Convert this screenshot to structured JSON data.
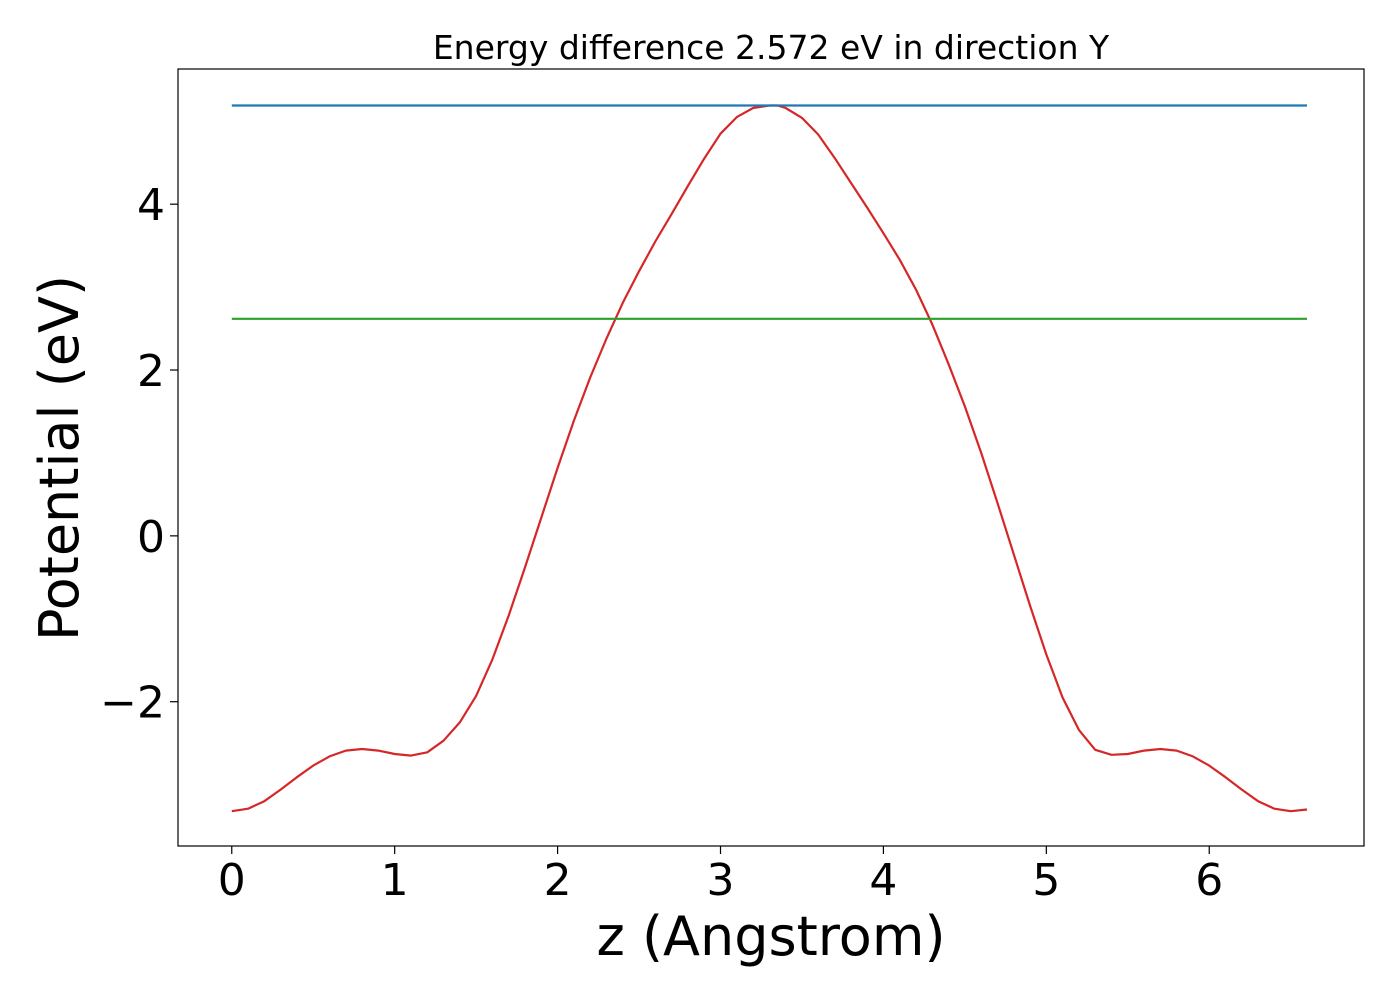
{
  "chart_data": {
    "type": "line",
    "title": "Energy difference 2.572 eV in direction Y",
    "xlabel": "z (Angstrom)",
    "ylabel": "Potential (eV)",
    "xlim": [
      -0.33,
      6.95
    ],
    "ylim": [
      -3.74,
      5.63
    ],
    "xticks": [
      0,
      1,
      2,
      3,
      4,
      5,
      6
    ],
    "xtick_labels": [
      "0",
      "1",
      "2",
      "3",
      "4",
      "5",
      "6"
    ],
    "yticks": [
      -2,
      0,
      2,
      4
    ],
    "ytick_labels": [
      "−2",
      "0",
      "2",
      "4"
    ],
    "grid": false,
    "series": [
      {
        "color": "#d62728",
        "x": [
          0,
          0.1,
          0.2,
          0.3,
          0.4,
          0.5,
          0.6,
          0.7,
          0.8,
          0.9,
          1.0,
          1.1,
          1.2,
          1.3,
          1.4,
          1.5,
          1.6,
          1.7,
          1.8,
          1.9,
          2.0,
          2.1,
          2.2,
          2.3,
          2.4,
          2.5,
          2.6,
          2.7,
          2.8,
          2.9,
          3.0,
          3.1,
          3.2,
          3.3,
          3.35,
          3.4,
          3.5,
          3.6,
          3.7,
          3.8,
          3.9,
          4.0,
          4.1,
          4.2,
          4.3,
          4.4,
          4.5,
          4.6,
          4.7,
          4.8,
          4.9,
          5.0,
          5.1,
          5.2,
          5.3,
          5.4,
          5.5,
          5.6,
          5.7,
          5.8,
          5.9,
          6.0,
          6.1,
          6.2,
          6.3,
          6.4,
          6.5,
          6.6
        ],
        "y": [
          -3.32,
          -3.29,
          -3.2,
          -3.06,
          -2.91,
          -2.77,
          -2.66,
          -2.59,
          -2.57,
          -2.59,
          -2.63,
          -2.65,
          -2.61,
          -2.47,
          -2.25,
          -1.93,
          -1.49,
          -0.96,
          -0.38,
          0.22,
          0.82,
          1.39,
          1.91,
          2.38,
          2.81,
          3.19,
          3.55,
          3.88,
          4.22,
          4.55,
          4.85,
          5.05,
          5.16,
          5.19,
          5.19,
          5.16,
          5.04,
          4.84,
          4.56,
          4.26,
          3.96,
          3.65,
          3.33,
          2.97,
          2.55,
          2.07,
          1.56,
          1.0,
          0.4,
          -0.22,
          -0.84,
          -1.43,
          -1.95,
          -2.34,
          -2.58,
          -2.64,
          -2.63,
          -2.59,
          -2.57,
          -2.59,
          -2.66,
          -2.77,
          -2.91,
          -3.06,
          -3.2,
          -3.29,
          -3.32,
          -3.3
        ]
      },
      {
        "color": "#1f77b4",
        "x": [
          0,
          6.6
        ],
        "y": [
          5.19,
          5.19
        ]
      },
      {
        "color": "#2ca02c",
        "x": [
          0,
          6.6
        ],
        "y": [
          2.618,
          2.618
        ]
      }
    ]
  }
}
